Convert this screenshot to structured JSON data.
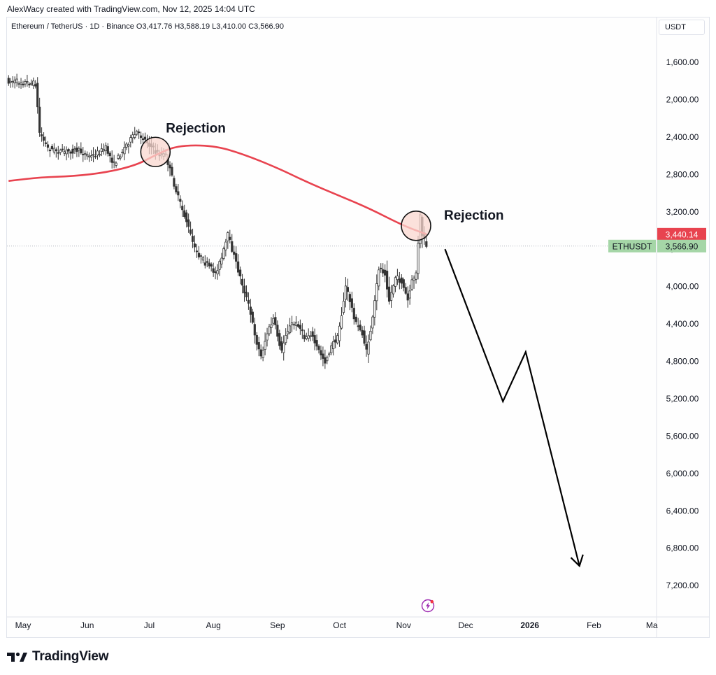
{
  "header": {
    "credit": "AlexWacy created with TradingView.com, Nov 12, 2025 14:04 UTC"
  },
  "legend": {
    "text": "Ethereum / TetherUS · 1D · Binance  O3,417.76  H3,588.19  L3,410.00  C3,566.90"
  },
  "currency_button": "USDT",
  "brand": {
    "name": "TradingView"
  },
  "colors": {
    "ma": "#e8434f",
    "candle": "#333333",
    "price_tag": "#a5d6a7",
    "ma_tag": "#e8434f",
    "highlight": "#f9d7cf"
  },
  "icons": {
    "brand": "tradingview-logo",
    "lightning": "lightning-icon"
  },
  "chart_data": {
    "type": "candlestick",
    "scale": "inverted",
    "symbol": "ETHUSDT",
    "ylim": [
      1400,
      7400
    ],
    "y_ticks": [
      "1,600.00",
      "2,000.00",
      "2,400.00",
      "2,800.00",
      "3,200.00",
      "3,600.00",
      "4,000.00",
      "4,400.00",
      "4,800.00",
      "5,200.00",
      "5,600.00",
      "6,000.00",
      "6,400.00",
      "6,800.00",
      "7,200.00"
    ],
    "y_tick_values": [
      1600,
      2000,
      2400,
      2800,
      3200,
      3600,
      4000,
      4400,
      4800,
      5200,
      5600,
      6000,
      6400,
      6800,
      7200
    ],
    "x_ticks": [
      "May",
      "Jun",
      "Jul",
      "Aug",
      "Sep",
      "Oct",
      "Nov",
      "Dec",
      "2026",
      "Feb",
      "Ma"
    ],
    "x_tick_dates": [
      "2025-05-01",
      "2025-06-01",
      "2025-07-01",
      "2025-08-01",
      "2025-09-01",
      "2025-10-01",
      "2025-11-01",
      "2025-12-01",
      "2026-01-01",
      "2026-02-01",
      "2026-03-01"
    ],
    "price_path": [
      [
        "2025-04-24",
        1800
      ],
      [
        "2025-04-30",
        1810
      ],
      [
        "2025-05-07",
        1830
      ],
      [
        "2025-05-09",
        2350
      ],
      [
        "2025-05-13",
        2520
      ],
      [
        "2025-05-20",
        2560
      ],
      [
        "2025-05-27",
        2540
      ],
      [
        "2025-06-03",
        2610
      ],
      [
        "2025-06-10",
        2520
      ],
      [
        "2025-06-14",
        2690
      ],
      [
        "2025-06-20",
        2480
      ],
      [
        "2025-06-25",
        2350
      ],
      [
        "2025-06-30",
        2450
      ],
      [
        "2025-07-04",
        2560
      ],
      [
        "2025-07-09",
        2600
      ],
      [
        "2025-07-12",
        2830
      ],
      [
        "2025-07-15",
        3050
      ],
      [
        "2025-07-19",
        3300
      ],
      [
        "2025-07-23",
        3600
      ],
      [
        "2025-07-28",
        3750
      ],
      [
        "2025-08-02",
        3850
      ],
      [
        "2025-08-05",
        3700
      ],
      [
        "2025-08-08",
        3450
      ],
      [
        "2025-08-10",
        3600
      ],
      [
        "2025-08-14",
        3900
      ],
      [
        "2025-08-18",
        4200
      ],
      [
        "2025-08-22",
        4600
      ],
      [
        "2025-08-24",
        4750
      ],
      [
        "2025-08-27",
        4500
      ],
      [
        "2025-08-30",
        4350
      ],
      [
        "2025-09-03",
        4700
      ],
      [
        "2025-09-05",
        4500
      ],
      [
        "2025-09-08",
        4400
      ],
      [
        "2025-09-11",
        4400
      ],
      [
        "2025-09-14",
        4550
      ],
      [
        "2025-09-17",
        4500
      ],
      [
        "2025-09-20",
        4650
      ],
      [
        "2025-09-24",
        4800
      ],
      [
        "2025-09-28",
        4600
      ],
      [
        "2025-09-30",
        4550
      ],
      [
        "2025-10-02",
        4300
      ],
      [
        "2025-10-04",
        4000
      ],
      [
        "2025-10-06",
        4150
      ],
      [
        "2025-10-09",
        4400
      ],
      [
        "2025-10-12",
        4500
      ],
      [
        "2025-10-14",
        4700
      ],
      [
        "2025-10-17",
        4350
      ],
      [
        "2025-10-20",
        3800
      ],
      [
        "2025-10-23",
        3850
      ],
      [
        "2025-10-25",
        4150
      ],
      [
        "2025-10-28",
        3900
      ],
      [
        "2025-10-31",
        3950
      ],
      [
        "2025-11-03",
        4150
      ],
      [
        "2025-11-05",
        3950
      ],
      [
        "2025-11-07",
        3850
      ],
      [
        "2025-11-09",
        3250
      ],
      [
        "2025-11-10",
        3450
      ],
      [
        "2025-11-12",
        3566.9
      ]
    ],
    "moving_average": [
      [
        "2025-04-24",
        2870
      ],
      [
        "2025-05-10",
        2830
      ],
      [
        "2025-05-25",
        2820
      ],
      [
        "2025-06-10",
        2780
      ],
      [
        "2025-06-25",
        2700
      ],
      [
        "2025-07-05",
        2580
      ],
      [
        "2025-07-15",
        2490
      ],
      [
        "2025-08-01",
        2490
      ],
      [
        "2025-08-15",
        2580
      ],
      [
        "2025-09-01",
        2730
      ],
      [
        "2025-09-15",
        2880
      ],
      [
        "2025-10-01",
        3030
      ],
      [
        "2025-10-15",
        3160
      ],
      [
        "2025-11-01",
        3350
      ],
      [
        "2025-11-12",
        3440.14
      ]
    ],
    "projection_path": [
      [
        "2025-11-21",
        3600
      ],
      [
        "2025-12-19",
        5230
      ],
      [
        "2025-12-30",
        4700
      ],
      [
        "2026-01-25",
        6990
      ]
    ],
    "annotations": [
      {
        "label": "Rejection",
        "date": "2025-07-04",
        "price": 2560
      },
      {
        "label": "Rejection",
        "date": "2025-11-07",
        "price": 3350
      }
    ],
    "price_tag": {
      "label": "ETHUSDT",
      "value": "3,566.90"
    },
    "ma_tag": {
      "value": "3,440.14"
    }
  }
}
